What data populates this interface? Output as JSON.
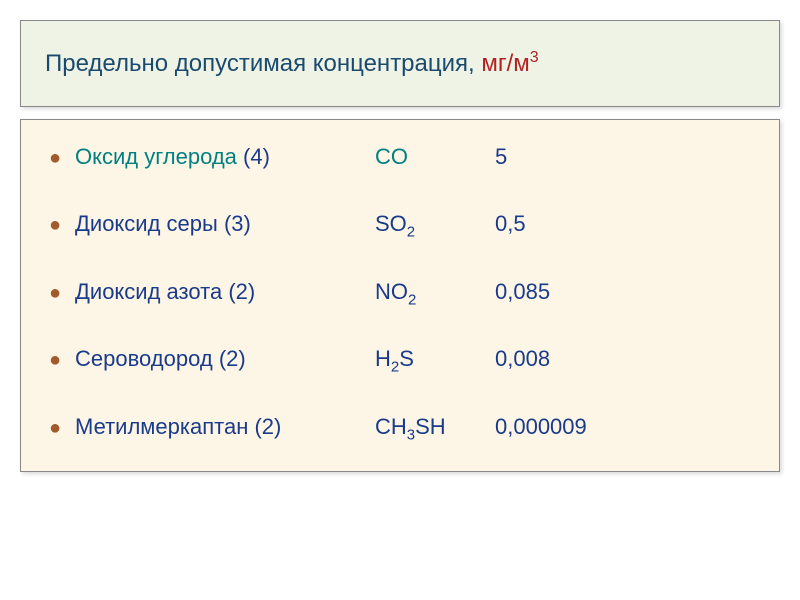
{
  "title": {
    "text": "Предельно допустимая концентрация",
    "unit": "мг/м",
    "unit_sup": "3",
    "separator": ", "
  },
  "colors": {
    "title_bg": "#eef3e5",
    "content_bg": "#fdf6e6",
    "title_text": "#1a4a6e",
    "unit_red": "#b22222",
    "oxide_teal": "#008080",
    "navy": "#1a3a8a",
    "bullet": "#a05a2c",
    "border": "#888888"
  },
  "rows": [
    {
      "label": "Оксид углерода",
      "hazard": "(4)",
      "formula": "CO",
      "formula_sub": "",
      "formula_tail": "",
      "formula_tail_sub": "",
      "value": "5",
      "style": "oxide"
    },
    {
      "label": "Диоксид серы",
      "hazard": "(3)",
      "formula": "SO",
      "formula_sub": "2",
      "formula_tail": "",
      "formula_tail_sub": "",
      "value": "0,5",
      "style": "dioxide"
    },
    {
      "label": "Диоксид азота",
      "hazard": "(2)",
      "formula": "NO",
      "formula_sub": "2",
      "formula_tail": "",
      "formula_tail_sub": "",
      "value": "0,085",
      "style": "dioxide"
    },
    {
      "label": "Сероводород",
      "hazard": "(2)",
      "formula": "H",
      "formula_sub": "2",
      "formula_tail": "S",
      "formula_tail_sub": "",
      "value": "0,008",
      "style": "dioxide"
    },
    {
      "label": "Метилмеркаптан",
      "hazard": "(2)",
      "formula": "CH",
      "formula_sub": "3",
      "formula_tail": "SH",
      "formula_tail_sub": "",
      "value": "0,000009",
      "style": "dioxide"
    }
  ]
}
